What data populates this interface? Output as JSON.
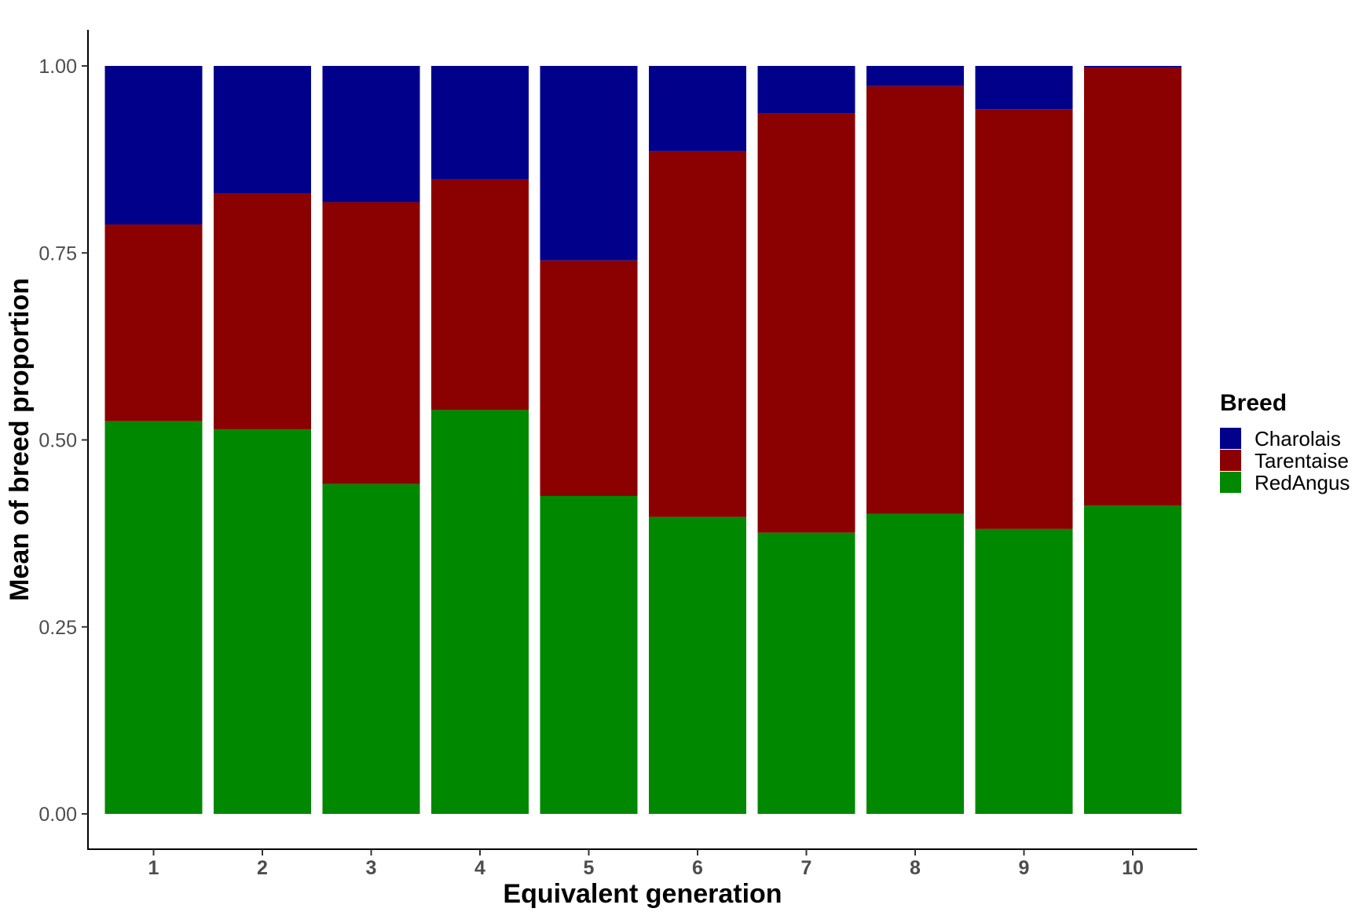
{
  "chart_data": {
    "type": "bar",
    "stacked": true,
    "categories": [
      "1",
      "2",
      "3",
      "4",
      "5",
      "6",
      "7",
      "8",
      "9",
      "10"
    ],
    "series": [
      {
        "name": "RedAngus",
        "color": "#008800",
        "values": [
          0.525,
          0.514,
          0.441,
          0.54,
          0.425,
          0.397,
          0.376,
          0.401,
          0.381,
          0.412
        ]
      },
      {
        "name": "Tarentaise",
        "color": "#8B0000",
        "values": [
          0.263,
          0.316,
          0.377,
          0.308,
          0.315,
          0.489,
          0.561,
          0.572,
          0.561,
          0.586
        ]
      },
      {
        "name": "Charolais",
        "color": "#00008B",
        "values": [
          0.212,
          0.17,
          0.182,
          0.152,
          0.26,
          0.114,
          0.063,
          0.027,
          0.058,
          0.002
        ]
      }
    ],
    "xlabel": "Equivalent generation",
    "ylabel": "Mean of breed proportion",
    "ylim": [
      0,
      1
    ],
    "yticks": [
      "0.00",
      "0.25",
      "0.50",
      "0.75",
      "1.00"
    ],
    "grid": false,
    "legend": {
      "title": "Breed",
      "position": "right",
      "items": [
        "Charolais",
        "Tarentaise",
        "RedAngus"
      ]
    }
  }
}
